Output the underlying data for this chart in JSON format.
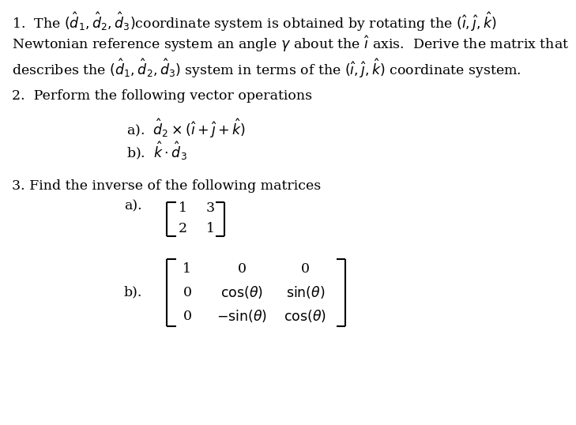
{
  "figsize": [
    7.29,
    5.38
  ],
  "dpi": 100,
  "bg_color": "#ffffff",
  "fontsize": 12.5,
  "font_family": "DejaVu Serif"
}
